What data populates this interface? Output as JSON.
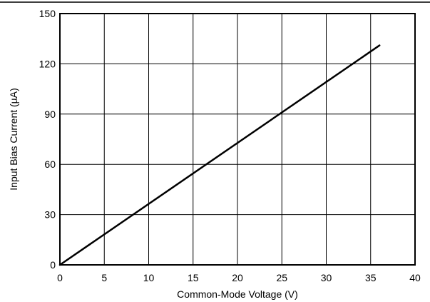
{
  "chart_data": {
    "type": "line",
    "title": "",
    "xlabel": "Common-Mode Voltage (V)",
    "ylabel": "Input Bias Current (µA)",
    "xlim": [
      0,
      40
    ],
    "ylim": [
      0,
      150
    ],
    "x_ticks": [
      0,
      5,
      10,
      15,
      20,
      25,
      30,
      35,
      40
    ],
    "y_ticks": [
      0,
      30,
      60,
      90,
      120,
      150
    ],
    "x_tick_labels": [
      "0",
      "5",
      "10",
      "15",
      "20",
      "25",
      "30",
      "35",
      "40"
    ],
    "y_tick_labels": [
      "0",
      "30",
      "60",
      "90",
      "120",
      "150"
    ],
    "grid": true,
    "legend": "none",
    "series": [
      {
        "x": [
          0,
          36
        ],
        "y": [
          0,
          131
        ]
      }
    ],
    "colors": {
      "line": "#000000",
      "grid": "#000000",
      "background": "#ffffff"
    }
  }
}
